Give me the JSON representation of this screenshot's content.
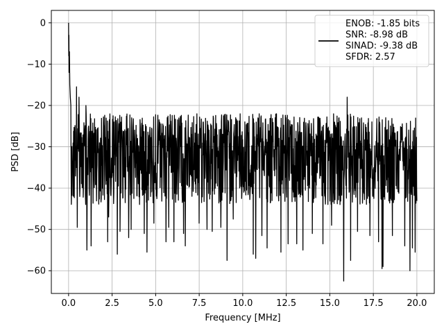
{
  "chart_data": {
    "type": "line",
    "title": "",
    "xlabel": "Frequency [MHz]",
    "ylabel": "PSD [dB]",
    "xlim": [
      -0.99,
      21.0
    ],
    "ylim": [
      -65.5,
      3.0
    ],
    "xticks": [
      0.0,
      2.5,
      5.0,
      7.5,
      10.0,
      12.5,
      15.0,
      17.5,
      20.0
    ],
    "xtick_labels": [
      "0.0",
      "2.5",
      "5.0",
      "7.5",
      "10.0",
      "12.5",
      "15.0",
      "17.5",
      "20.0"
    ],
    "yticks": [
      0,
      -10,
      -20,
      -30,
      -40,
      -50,
      -60
    ],
    "ytick_labels": [
      "0",
      "−10",
      "−20",
      "−30",
      "−40",
      "−50",
      "−60"
    ],
    "grid": true,
    "legend_position": "top-right",
    "series": [
      {
        "name": "ENOB: -1.85 bits\nSNR: -8.98 dB\nSINAD: -9.38 dB\nSFDR: 2.57",
        "color": "#000000",
        "x_start": 0.0,
        "x_end": 20.0,
        "initial_points": [
          [
            0.0,
            0.0
          ],
          [
            0.01,
            -8.0
          ],
          [
            0.02,
            -3.0
          ],
          [
            0.03,
            -12.0
          ],
          [
            0.05,
            -7.0
          ],
          [
            0.07,
            -15.0
          ],
          [
            0.1,
            -18.0
          ],
          [
            0.13,
            -20.0
          ]
        ],
        "noise_band": {
          "upper": -22.0,
          "lower": -44.0,
          "median": -31.0
        },
        "peaks": [
          [
            0.45,
            -15.5
          ],
          [
            0.6,
            -18.0
          ],
          [
            1.0,
            -20.0
          ],
          [
            12.6,
            -16.0
          ],
          [
            16.0,
            -18.0
          ],
          [
            19.9,
            -19.0
          ]
        ],
        "dips": [
          [
            0.5,
            -49.5
          ],
          [
            1.05,
            -55.0
          ],
          [
            1.3,
            -54.0
          ],
          [
            2.25,
            -53.0
          ],
          [
            2.3,
            -47.0
          ],
          [
            2.8,
            -56.0
          ],
          [
            2.95,
            -50.5
          ],
          [
            3.45,
            -52.0
          ],
          [
            3.6,
            -50.0
          ],
          [
            4.35,
            -51.0
          ],
          [
            4.5,
            -55.5
          ],
          [
            4.9,
            -48.5
          ],
          [
            5.6,
            -53.0
          ],
          [
            5.75,
            -49.5
          ],
          [
            6.05,
            -53.0
          ],
          [
            6.6,
            -51.0
          ],
          [
            6.7,
            -54.0
          ],
          [
            7.5,
            -48.5
          ],
          [
            7.95,
            -50.0
          ],
          [
            8.25,
            -50.5
          ],
          [
            8.75,
            -49.5
          ],
          [
            9.1,
            -57.5
          ],
          [
            9.45,
            -47.5
          ],
          [
            10.6,
            -56.0
          ],
          [
            10.75,
            -57.0
          ],
          [
            11.1,
            -51.5
          ],
          [
            11.4,
            -54.5
          ],
          [
            12.2,
            -55.5
          ],
          [
            12.6,
            -53.5
          ],
          [
            13.1,
            -53.5
          ],
          [
            13.45,
            -55.0
          ],
          [
            14.0,
            -51.0
          ],
          [
            14.6,
            -53.5
          ],
          [
            15.1,
            -49.0
          ],
          [
            15.8,
            -62.5
          ],
          [
            16.2,
            -57.5
          ],
          [
            16.6,
            -50.5
          ],
          [
            17.3,
            -51.5
          ],
          [
            17.8,
            -53.0
          ],
          [
            18.0,
            -59.5
          ],
          [
            18.05,
            -59.0
          ],
          [
            18.6,
            -51.5
          ],
          [
            19.3,
            -54.0
          ],
          [
            19.6,
            -60.0
          ],
          [
            19.75,
            -54.5
          ],
          [
            19.9,
            -55.5
          ]
        ]
      }
    ]
  }
}
